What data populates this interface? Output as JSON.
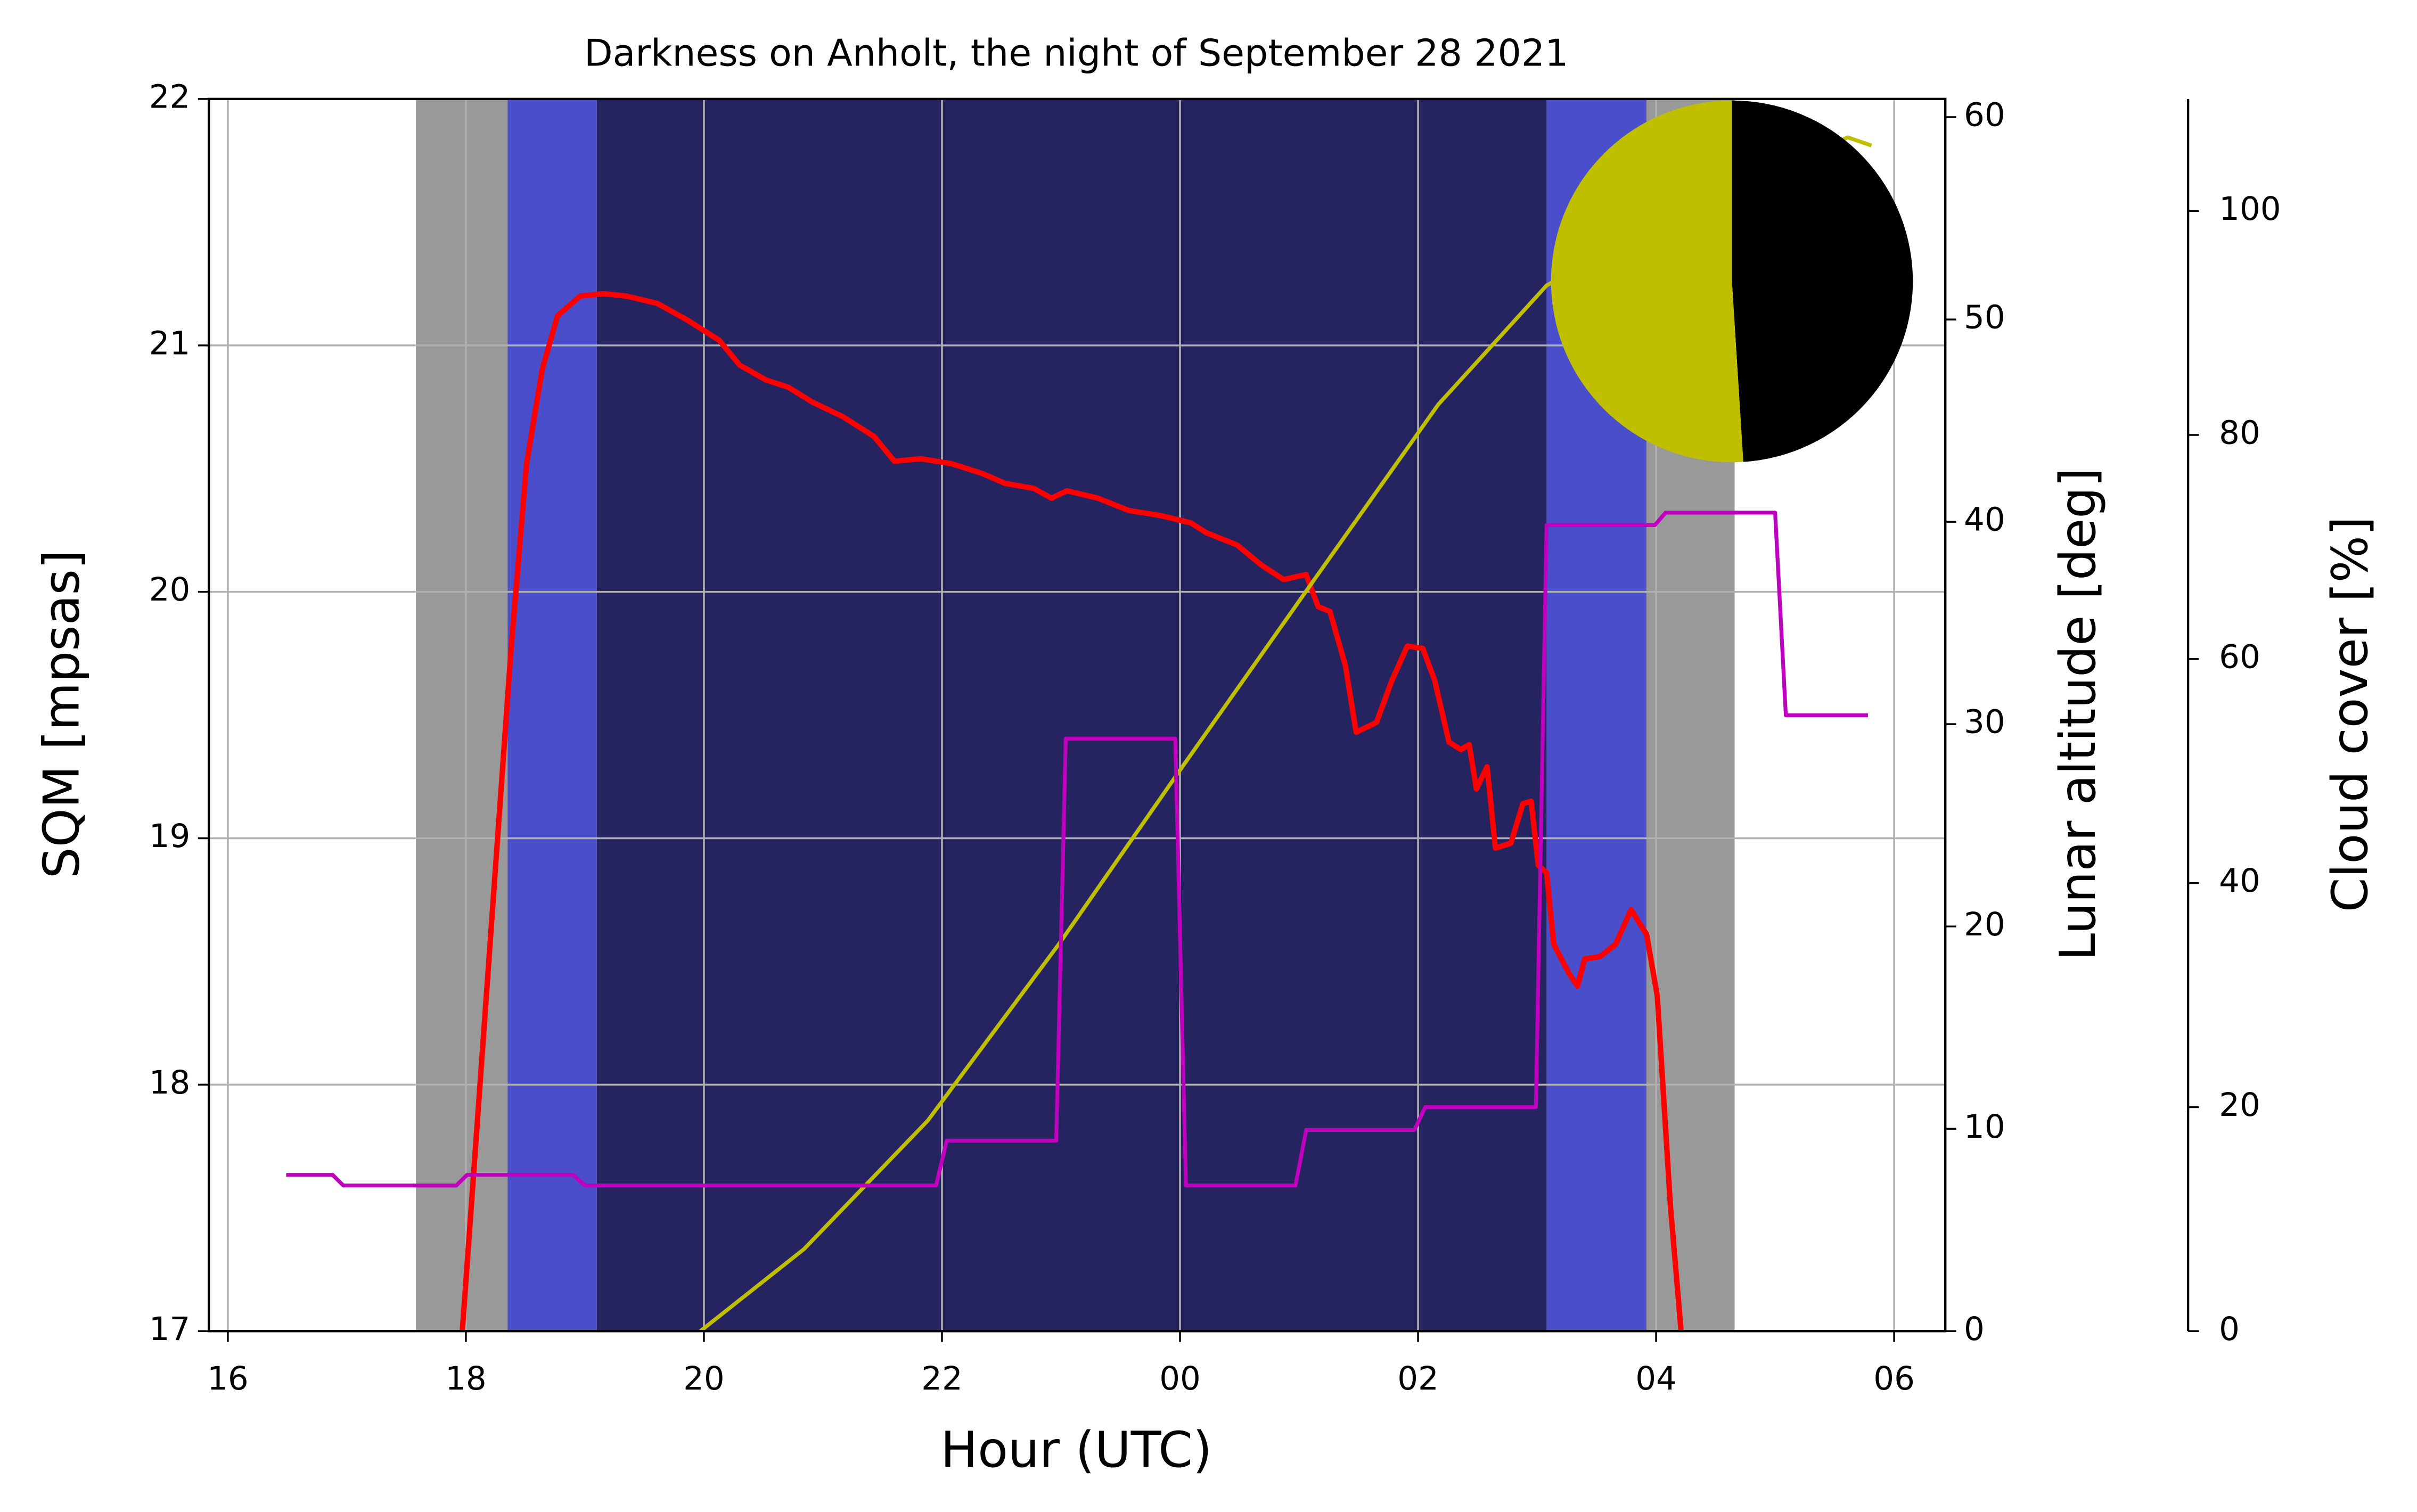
{
  "chart_data": {
    "type": "line",
    "title": "Darkness on Anholt, the night of September 28 2021",
    "xlabel": "Hour (UTC)",
    "ylabel": "SQM [mpsas]",
    "y2label": "Lunar altitude [deg]",
    "y3label": "Cloud cover [%]",
    "xlim": [
      15.84,
      30.43
    ],
    "xticks": [
      16,
      18,
      20,
      22,
      {
        "value": 24,
        "label": "00"
      },
      {
        "value": 26,
        "label": "02"
      },
      {
        "value": 28,
        "label": "04"
      },
      {
        "value": 30,
        "label": "06"
      }
    ],
    "ylim": [
      17,
      22
    ],
    "yticks": [
      17,
      18,
      19,
      20,
      21,
      22
    ],
    "y2lim": [
      0,
      60.9
    ],
    "y2ticks": [
      0,
      10,
      20,
      30,
      40,
      50,
      60
    ],
    "y3lim": [
      0,
      110
    ],
    "y3ticks": [
      0,
      20,
      40,
      60,
      80,
      100
    ],
    "grid": true,
    "label_colors": {
      "ylabel": "#ff0000",
      "y2label": "#bfbf00",
      "y3label": "#bf00bf"
    },
    "bands": [
      {
        "start": 17.58,
        "end": 18.35,
        "color": "#999999"
      },
      {
        "start": 18.35,
        "end": 19.1,
        "color": "#4b4ecb"
      },
      {
        "start": 19.1,
        "end": 27.08,
        "color": "#252360"
      },
      {
        "start": 27.08,
        "end": 27.92,
        "color": "#4b4ecb"
      },
      {
        "start": 27.92,
        "end": 28.66,
        "color": "#999999"
      }
    ],
    "series": [
      {
        "color": "#ff0000",
        "axis": "y",
        "width": 3.5,
        "x": [
          17.97,
          18.12,
          18.25,
          18.38,
          18.51,
          18.64,
          18.77,
          18.96,
          19.16,
          19.35,
          19.61,
          19.87,
          20.13,
          20.3,
          20.52,
          20.71,
          20.91,
          21.17,
          21.43,
          21.6,
          21.82,
          22.08,
          22.34,
          22.53,
          22.77,
          22.92,
          23.05,
          23.31,
          23.57,
          23.83,
          24.09,
          24.22,
          24.48,
          24.68,
          24.87,
          25.06,
          25.16,
          25.26,
          25.39,
          25.48,
          25.65,
          25.78,
          25.91,
          26.04,
          26.14,
          26.26,
          26.36,
          26.43,
          26.49,
          26.58,
          26.65,
          26.78,
          26.88,
          26.95,
          27.01,
          27.08,
          27.14,
          27.27,
          27.34,
          27.4,
          27.53,
          27.66,
          27.79,
          27.92,
          28.01,
          28.12,
          28.21
        ],
        "values": [
          17.0,
          18.01,
          18.89,
          19.77,
          20.52,
          20.9,
          21.12,
          21.2,
          21.21,
          21.2,
          21.17,
          21.1,
          21.02,
          20.92,
          20.86,
          20.83,
          20.77,
          20.71,
          20.63,
          20.53,
          20.54,
          20.52,
          20.48,
          20.44,
          20.42,
          20.38,
          20.41,
          20.38,
          20.33,
          20.31,
          20.28,
          20.24,
          20.19,
          20.11,
          20.05,
          20.07,
          19.94,
          19.92,
          19.7,
          19.43,
          19.47,
          19.64,
          19.78,
          19.77,
          19.64,
          19.39,
          19.36,
          19.38,
          19.2,
          19.29,
          18.96,
          18.98,
          19.14,
          19.15,
          18.89,
          18.86,
          18.57,
          18.45,
          18.4,
          18.51,
          18.52,
          18.57,
          18.71,
          18.61,
          18.36,
          17.51,
          17.0
        ]
      },
      {
        "color": "#bfbf00",
        "axis": "y2",
        "width": 2.5,
        "x": [
          19.97,
          20.84,
          21.88,
          22.99,
          24.03,
          25.13,
          26.17,
          27.08,
          28.38,
          29.61,
          29.81
        ],
        "values": [
          0,
          4.05,
          10.4,
          19.19,
          27.98,
          37.16,
          45.8,
          51.68,
          55.9,
          59.0,
          58.6
        ]
      },
      {
        "color": "#bf00bf",
        "axis": "y3",
        "width": 2.5,
        "x": [
          16.49,
          16.88,
          16.97,
          17.92,
          18.01,
          18.9,
          19.0,
          21.95,
          22.04,
          22.96,
          23.04,
          23.96,
          24.05,
          24.97,
          25.06,
          25.97,
          26.06,
          26.99,
          27.08,
          27.99,
          28.08,
          29.0,
          29.09,
          29.78
        ],
        "values": [
          13.95,
          13.95,
          13.0,
          13.0,
          13.95,
          13.95,
          13.0,
          13.0,
          17.0,
          17.0,
          52.9,
          52.9,
          13.0,
          13.0,
          17.96,
          17.96,
          20.0,
          20.0,
          71.96,
          71.96,
          73.07,
          73.07,
          54.97,
          54.97
        ]
      }
    ],
    "inset": {
      "type": "pie",
      "values": [
        49,
        51
      ],
      "colors": [
        "#000000",
        "#bfbf00"
      ]
    }
  }
}
